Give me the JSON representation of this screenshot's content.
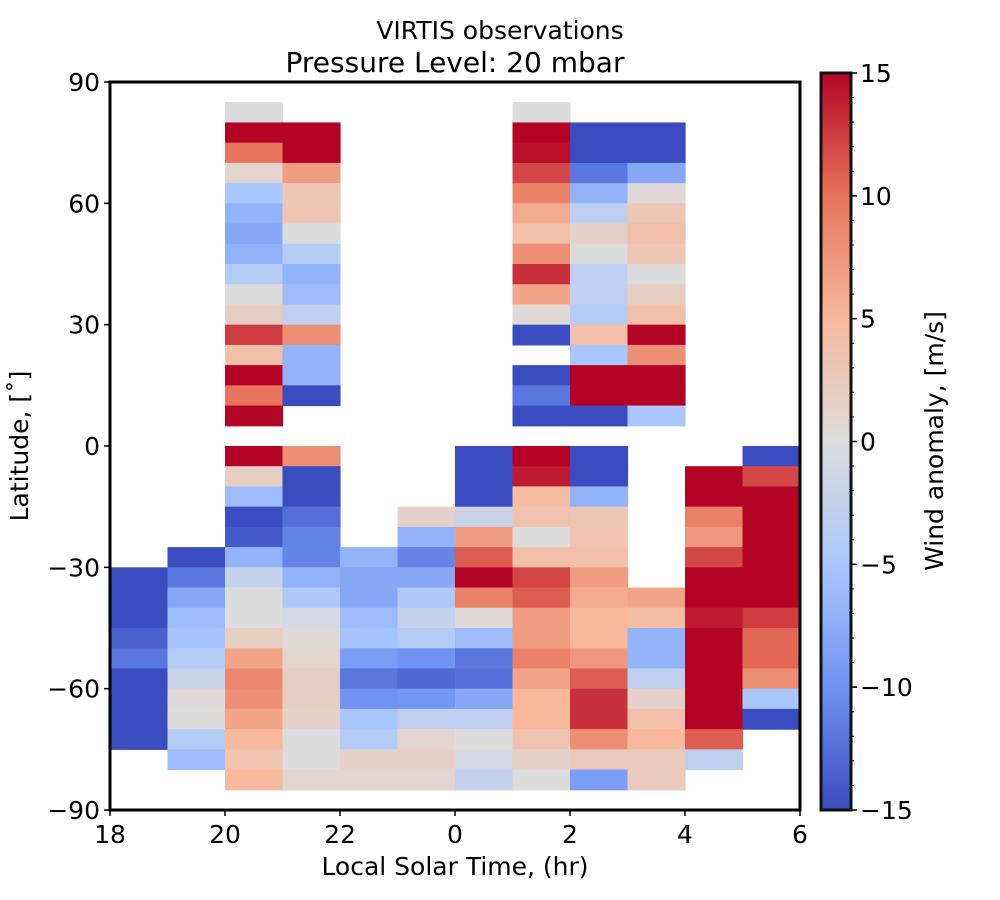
{
  "chart_data": {
    "type": "heatmap",
    "title": "VIRTIS observations",
    "subtitle": "Pressure Level: 20 mbar",
    "xlabel": "Local Solar Time, (hr)",
    "ylabel": "Latitude, [˚]",
    "colorbar_label": "Wind anomaly, [m/s]",
    "colormap": "coolwarm",
    "colormap_stops": [
      "#3b4cc0",
      "#6f92f3",
      "#aac7fd",
      "#dddcdc",
      "#f7b89c",
      "#e7745b",
      "#b40426"
    ],
    "clim": [
      -15,
      15
    ],
    "x_bin_edges_hours_since_18": [
      0,
      1,
      2,
      3,
      4,
      5,
      6,
      7,
      8,
      9,
      10,
      11,
      12
    ],
    "x_ticks": [
      "18",
      "20",
      "22",
      "0",
      "2",
      "4",
      "6"
    ],
    "x_tick_values": [
      0,
      2,
      4,
      6,
      8,
      10,
      12
    ],
    "y_ticks": [
      "90",
      "60",
      "30",
      "0",
      "−30",
      "−60",
      "−90"
    ],
    "y_tick_values": [
      90,
      60,
      30,
      0,
      -30,
      -60,
      -90
    ],
    "colorbar_ticks": [
      "15",
      "10",
      "5",
      "0",
      "−5",
      "−10",
      "−15"
    ],
    "colorbar_tick_values": [
      15,
      10,
      5,
      0,
      -5,
      -10,
      -15
    ],
    "xlim": [
      0,
      12
    ],
    "ylim": [
      -90,
      90
    ],
    "lat_bin_size": 5,
    "rows_top_latitude": [
      90,
      85,
      80,
      75,
      70,
      65,
      60,
      55,
      50,
      45,
      40,
      35,
      30,
      25,
      20,
      15,
      10,
      5,
      0,
      -5,
      -10,
      -15,
      -20,
      -25,
      -30,
      -35,
      -40,
      -45,
      -50,
      -55,
      -60,
      -65,
      -70,
      -75,
      -80,
      -85
    ],
    "values": [
      [
        null,
        null,
        null,
        null,
        null,
        null,
        null,
        null,
        null,
        null,
        null,
        null
      ],
      [
        null,
        null,
        0,
        null,
        null,
        null,
        null,
        0,
        null,
        null,
        null,
        null
      ],
      [
        null,
        null,
        15,
        15,
        null,
        null,
        null,
        15,
        -15,
        -15,
        null,
        null
      ],
      [
        null,
        null,
        10,
        15,
        null,
        null,
        null,
        14.5,
        -15,
        -15,
        null,
        null
      ],
      [
        null,
        null,
        1,
        7,
        null,
        null,
        null,
        12,
        -12,
        -8,
        null,
        null
      ],
      [
        null,
        null,
        -5,
        3,
        null,
        null,
        null,
        9,
        -7,
        0.5,
        null,
        null
      ],
      [
        null,
        null,
        -7,
        3,
        null,
        null,
        null,
        6,
        -3,
        3,
        null,
        null
      ],
      [
        null,
        null,
        -8,
        0,
        null,
        null,
        null,
        4,
        1.5,
        4,
        null,
        null
      ],
      [
        null,
        null,
        -7,
        -4,
        null,
        null,
        null,
        8,
        0,
        3,
        null,
        null
      ],
      [
        null,
        null,
        -4,
        -7,
        null,
        null,
        null,
        13,
        -3,
        0,
        null,
        null
      ],
      [
        null,
        null,
        0,
        -6,
        null,
        null,
        null,
        6.5,
        -3,
        2,
        null,
        null
      ],
      [
        null,
        null,
        2,
        -3,
        null,
        null,
        null,
        0.5,
        -4,
        4,
        null,
        null
      ],
      [
        null,
        null,
        12.5,
        8,
        null,
        null,
        null,
        -15,
        4,
        15,
        null,
        null
      ],
      [
        null,
        null,
        4,
        -7,
        null,
        null,
        null,
        null,
        -5,
        8,
        null,
        null
      ],
      [
        null,
        null,
        15,
        -7,
        null,
        null,
        null,
        -15,
        15,
        15,
        null,
        null
      ],
      [
        null,
        null,
        10,
        -15,
        null,
        null,
        null,
        -12,
        15,
        15,
        null,
        null
      ],
      [
        null,
        null,
        15,
        null,
        null,
        null,
        null,
        -15,
        -15,
        -5,
        null,
        null
      ],
      [
        null,
        null,
        null,
        null,
        null,
        null,
        null,
        null,
        null,
        null,
        null,
        null
      ],
      [
        null,
        null,
        15,
        8,
        null,
        null,
        -15,
        15,
        -15,
        null,
        null,
        -15
      ],
      [
        null,
        null,
        2,
        -15,
        null,
        null,
        -15,
        14,
        -15,
        null,
        15,
        12
      ],
      [
        null,
        null,
        -6,
        -15,
        null,
        null,
        -15,
        4.5,
        -7,
        null,
        15,
        15
      ],
      [
        null,
        null,
        -15,
        -12.5,
        null,
        1.5,
        -2,
        3.5,
        3,
        null,
        9,
        15
      ],
      [
        null,
        null,
        -14,
        -11,
        null,
        -7,
        7,
        0,
        3.5,
        null,
        7.5,
        15
      ],
      [
        null,
        -15,
        -7,
        -11,
        -7,
        -11,
        11,
        4,
        4,
        null,
        12,
        15
      ],
      [
        -15,
        -12,
        -2.5,
        -7,
        -8,
        -8,
        15,
        12,
        7,
        null,
        15,
        15
      ],
      [
        -15,
        -8,
        0,
        -4.5,
        -8,
        -4.5,
        9,
        11,
        6,
        6.5,
        15,
        15
      ],
      [
        -15,
        -6,
        0,
        -1,
        -6,
        -2.5,
        0.5,
        7,
        5,
        4.5,
        14,
        12.5
      ],
      [
        -13.5,
        -5.5,
        2,
        0.5,
        -5.5,
        -4,
        -6,
        7,
        5,
        -7,
        15,
        10.5
      ],
      [
        -12,
        -4,
        6.5,
        1,
        -9,
        -10,
        -12,
        9,
        7.5,
        -7,
        15,
        10.5
      ],
      [
        -15,
        -2,
        8.5,
        2,
        -12,
        -13,
        -12.5,
        6.5,
        11,
        -3,
        15,
        8
      ],
      [
        -15,
        0.5,
        8,
        2,
        -10,
        -9.5,
        -8,
        5,
        13,
        1.5,
        15,
        -5
      ],
      [
        -15,
        0,
        6.5,
        1.5,
        -5,
        -3,
        -3,
        5,
        13,
        4,
        15,
        -15
      ],
      [
        -15,
        -4,
        5,
        0,
        -4,
        1,
        0,
        3.5,
        8,
        5,
        11,
        null
      ],
      [
        null,
        -6,
        3.5,
        0,
        1.5,
        1.5,
        -1,
        1.5,
        2.5,
        2.5,
        -3,
        null
      ],
      [
        null,
        null,
        5,
        1,
        1,
        1,
        -2.5,
        0,
        -9,
        2.5,
        null,
        null
      ],
      [
        null,
        null,
        null,
        null,
        null,
        null,
        null,
        null,
        null,
        null,
        null,
        null
      ]
    ]
  }
}
